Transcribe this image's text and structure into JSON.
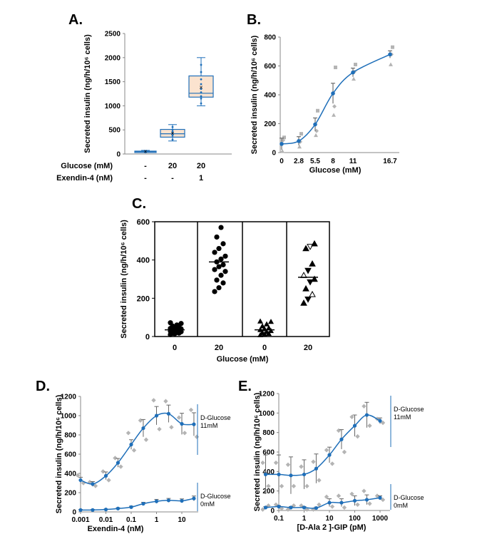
{
  "colors": {
    "accent": "#1f6fb9",
    "replicate": "#b4b4b4",
    "box_fill": "#fbe3cf",
    "black": "#000000"
  },
  "chart_data": [
    {
      "panel": "A.",
      "type": "box",
      "ylabel": "Secreted insulin (ng/h/10⁶ cells)",
      "ylim": [
        0,
        2500
      ],
      "yticks": [
        0,
        500,
        1000,
        1500,
        2000,
        2500
      ],
      "rows": [
        {
          "label": "Glucose (mM)",
          "values": [
            "-",
            "20",
            "20"
          ]
        },
        {
          "label": "Exendin-4 (nM)",
          "values": [
            "-",
            "-",
            "1"
          ]
        }
      ],
      "boxes": [
        {
          "min": 30,
          "q1": 40,
          "median": 50,
          "q3": 60,
          "max": 75,
          "mean": 50,
          "points": [
            35,
            45,
            50,
            55,
            65
          ]
        },
        {
          "min": 270,
          "q1": 350,
          "median": 420,
          "q3": 510,
          "max": 610,
          "mean": 430,
          "points": [
            300,
            380,
            420,
            460,
            500,
            560
          ]
        },
        {
          "min": 1000,
          "q1": 1180,
          "median": 1260,
          "q3": 1620,
          "max": 2000,
          "mean": 1380,
          "points": [
            1050,
            1150,
            1200,
            1280,
            1350,
            1450,
            1550,
            1700,
            1850
          ]
        }
      ]
    },
    {
      "panel": "B.",
      "type": "line",
      "xlabel": "Glucose (mM)",
      "ylabel": "Secreted insulin (ng/h/10⁶ cells)",
      "ylim": [
        0,
        800
      ],
      "yticks": [
        0,
        200,
        400,
        600,
        800
      ],
      "x": [
        0,
        2.8,
        5.5,
        8,
        11,
        16.7
      ],
      "xtick_labels": [
        "0",
        "2.8",
        "5.5",
        "8",
        "11",
        "16.7"
      ],
      "means": [
        60,
        80,
        195,
        410,
        555,
        680
      ],
      "errors": [
        40,
        30,
        45,
        70,
        30,
        25
      ],
      "replicates": [
        [
          105,
          85,
          10
        ],
        [
          130,
          75,
          40
        ],
        [
          290,
          150,
          120
        ],
        [
          590,
          320,
          260
        ],
        [
          610,
          560,
          510
        ],
        [
          730,
          680,
          610
        ]
      ]
    },
    {
      "panel": "C.",
      "type": "scatter",
      "xlabel": "Glucose (mM)",
      "ylabel": "Secreted insulin (ng/h/10⁶ cells)",
      "ylim": [
        0,
        600
      ],
      "yticks": [
        0,
        200,
        400,
        600
      ],
      "groups": [
        {
          "label": "0",
          "marker": "circle",
          "median": 35,
          "values": [
            10,
            14,
            18,
            20,
            22,
            25,
            28,
            30,
            33,
            36,
            38,
            40,
            42,
            45,
            48,
            55,
            60,
            68,
            72
          ]
        },
        {
          "label": "20",
          "marker": "circle",
          "median": 390,
          "values": [
            235,
            255,
            280,
            295,
            320,
            340,
            350,
            365,
            375,
            390,
            405,
            420,
            440,
            460,
            485,
            520,
            570
          ]
        },
        {
          "label": "0",
          "marker": "triangle",
          "median": 35,
          "values": [
            8,
            12,
            15,
            20,
            25,
            30,
            35,
            40,
            45,
            55,
            65,
            78,
            80
          ]
        },
        {
          "label": "20",
          "marker": "mixed-triangle",
          "median": 310,
          "values": [
            175,
            195,
            220,
            250,
            285,
            300,
            320,
            345,
            380,
            460,
            470,
            485
          ]
        }
      ]
    },
    {
      "panel": "D.",
      "type": "line",
      "xscale": "log",
      "xlabel": "Exendin-4 (nM)",
      "ylabel": "Secreted insulin (ng/h/10⁶ cells)",
      "ylim": [
        0,
        1200
      ],
      "yticks": [
        0,
        200,
        400,
        600,
        800,
        1000,
        1200
      ],
      "xtick_labels": [
        "0.001",
        "0.01",
        "0.1",
        "1",
        "10"
      ],
      "x": [
        0.001,
        0.003,
        0.01,
        0.03,
        0.1,
        0.3,
        1,
        3,
        10,
        30
      ],
      "series": [
        {
          "name": "D-Glucose 11mM",
          "means": [
            330,
            290,
            375,
            510,
            700,
            870,
            1000,
            1020,
            915,
            910
          ],
          "errors": [
            30,
            25,
            40,
            45,
            50,
            90,
            95,
            90,
            110,
            120
          ],
          "replicates": [
            [
              380,
              300
            ],
            [
              310,
              270
            ],
            [
              420,
              330
            ],
            [
              560,
              470
            ],
            [
              820,
              640
            ],
            [
              950,
              750
            ],
            [
              1160,
              860
            ],
            [
              1150,
              880
            ],
            [
              980,
              820
            ],
            [
              1060,
              780
            ]
          ]
        },
        {
          "name": "D-Glucose 0mM",
          "means": [
            20,
            20,
            25,
            35,
            50,
            85,
            110,
            120,
            115,
            140
          ],
          "errors": [
            5,
            5,
            5,
            8,
            10,
            15,
            20,
            20,
            20,
            25
          ],
          "replicates": []
        }
      ]
    },
    {
      "panel": "E.",
      "type": "line",
      "xscale": "log",
      "xlabel": "[D-Ala 2 ]-GIP (pM)",
      "ylabel": "Secreted insulin (ng/h/10⁶ cells)",
      "ylim": [
        0,
        1200
      ],
      "yticks": [
        0,
        200,
        400,
        600,
        800,
        1000,
        1200
      ],
      "xtick_labels": [
        "0.1",
        "1",
        "10",
        "100",
        "1000"
      ],
      "x": [
        0.03,
        0.1,
        0.3,
        1,
        3,
        10,
        30,
        100,
        300,
        1000
      ],
      "series": [
        {
          "name": "D-Glucose 11mM",
          "means": [
            370,
            370,
            360,
            370,
            430,
            570,
            730,
            870,
            980,
            920
          ],
          "errors": [
            200,
            200,
            190,
            150,
            150,
            80,
            100,
            110,
            130,
            30
          ],
          "replicates": [
            [
              490,
              250
            ],
            [
              490,
              250
            ],
            [
              470,
              250
            ],
            [
              450,
              250
            ],
            [
              500,
              310
            ],
            [
              620,
              480
            ],
            [
              820,
              600
            ],
            [
              960,
              760
            ],
            [
              1070,
              870
            ],
            [
              940,
              900
            ]
          ]
        },
        {
          "name": "D-Glucose 0mM",
          "means": [
            30,
            40,
            30,
            30,
            25,
            80,
            80,
            100,
            110,
            130
          ],
          "errors": [
            10,
            10,
            10,
            10,
            10,
            40,
            40,
            50,
            50,
            20
          ],
          "replicates": [
            [
              10,
              50
            ],
            [
              60,
              20
            ],
            [
              10,
              50
            ],
            [
              50,
              10
            ],
            [
              10,
              60
            ],
            [
              140,
              40
            ],
            [
              150,
              30
            ],
            [
              170,
              60
            ],
            [
              200,
              70
            ],
            [
              150,
              110
            ]
          ]
        }
      ]
    }
  ]
}
